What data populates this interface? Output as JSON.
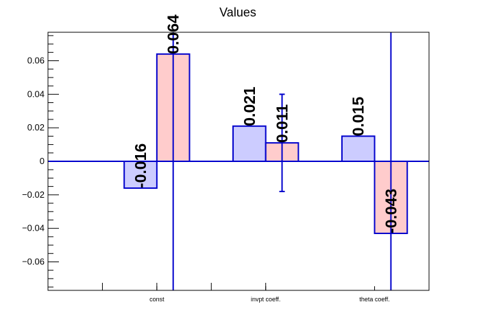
{
  "chart_data": {
    "type": "bar",
    "title": "Values",
    "xlabel": "",
    "ylabel": "",
    "categories": [
      "const",
      "invpt coeff.",
      "theta coeff."
    ],
    "ylim": [
      -0.077,
      0.077
    ],
    "yticks": [
      -0.06,
      -0.04,
      -0.02,
      0,
      0.02,
      0.04,
      0.06
    ],
    "ytick_labels": [
      "−0.06",
      "−0.04",
      "−0.02",
      "0",
      "0.02",
      "0.04",
      "0.06"
    ],
    "grid": false,
    "legend": "none",
    "series": [
      {
        "values": [
          -0.016,
          0.021,
          0.015
        ],
        "labels": [
          "-0.016",
          "0.021",
          "0.015"
        ],
        "errors": [
          0,
          0,
          0
        ],
        "fill": "#ccccff",
        "stroke": "#0000cc"
      },
      {
        "values": [
          0.064,
          0.011,
          -0.043
        ],
        "labels": [
          "0.064",
          "0.011",
          "-0.043"
        ],
        "errors": [
          0.16,
          0.029,
          0.16
        ],
        "fill": "#ffcccc",
        "stroke": "#0000cc"
      }
    ]
  }
}
